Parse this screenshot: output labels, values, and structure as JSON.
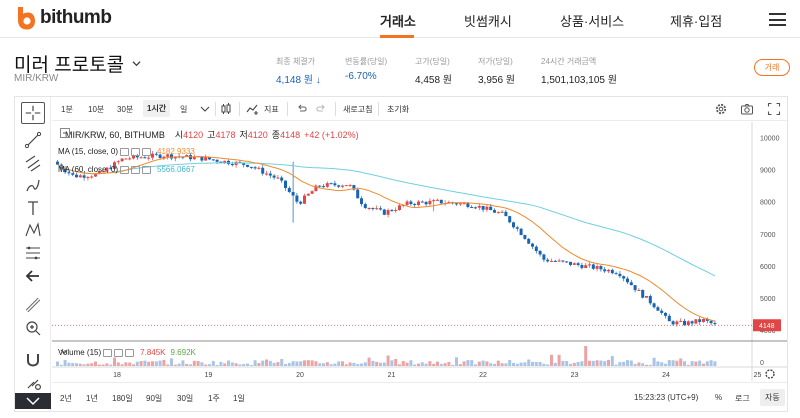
{
  "nav": {
    "logo_text": "bithumb",
    "items": [
      "거래소",
      "빗썸캐시",
      "상품·서비스",
      "제휴·입점"
    ],
    "active_index": 0,
    "accent": "#f37321"
  },
  "coin": {
    "name": "미러 프로토콜",
    "pair": "MIR/KRW"
  },
  "stats": [
    {
      "label": "최종 체결가",
      "value": "4,148 원 ↓",
      "tone": "down"
    },
    {
      "label": "변동률(당일)",
      "value": "-6.70%",
      "tone": "down"
    },
    {
      "label": "고가(당일)",
      "value": "4,458 원",
      "tone": "normal"
    },
    {
      "label": "저가(당일)",
      "value": "3,956 원",
      "tone": "normal"
    },
    {
      "label": "24시간 거래금액",
      "value": "1,501,103,105 원",
      "tone": "normal"
    }
  ],
  "trade_button": "거래",
  "toolbar": {
    "intervals": [
      "1분",
      "10분",
      "30분",
      "1시간",
      "일"
    ],
    "active_interval": "1시간",
    "indicator_label": "지표",
    "refresh_label": "새로고침",
    "reset_label": "초기화"
  },
  "legend": {
    "symbol": "MIR/KRW, 60, BITHUMB",
    "open_label": "시",
    "open": "4120",
    "high_label": "고",
    "high": "4178",
    "low_label": "저",
    "low": "4120",
    "close_label": "종",
    "close": "4148",
    "change": "+42 (+1.02%)",
    "ma15_label": "MA (15, close, 0)",
    "ma15_value": "4182.9333",
    "ma60_label": "MA (60, close, 0)",
    "ma60_value": "5566.0667",
    "volume_label": "Volume (15)",
    "volume_value": "7.845K",
    "volume_ma": "9.692K"
  },
  "chart_data": {
    "type": "candlestick",
    "y_ticks": [
      10000,
      9000,
      8000,
      7000,
      6000,
      5000,
      4000
    ],
    "ylim": [
      3750,
      10300
    ],
    "x_ticks": [
      "18",
      "19",
      "20",
      "21",
      "22",
      "23",
      "24",
      "25"
    ],
    "last_price_label": "4148",
    "volume_axis_label": "0",
    "colors": {
      "up": "#e04646",
      "down": "#1763b6",
      "ma15": "#f08a2c",
      "ma60": "#6fd0e0"
    }
  },
  "bottom": {
    "ranges": [
      "2년",
      "1년",
      "180일",
      "90일",
      "30일",
      "1주",
      "1일"
    ],
    "clock": "15:23:23 (UTC+9)",
    "percent_label": "%",
    "log_label": "로그",
    "auto_label": "자동"
  }
}
